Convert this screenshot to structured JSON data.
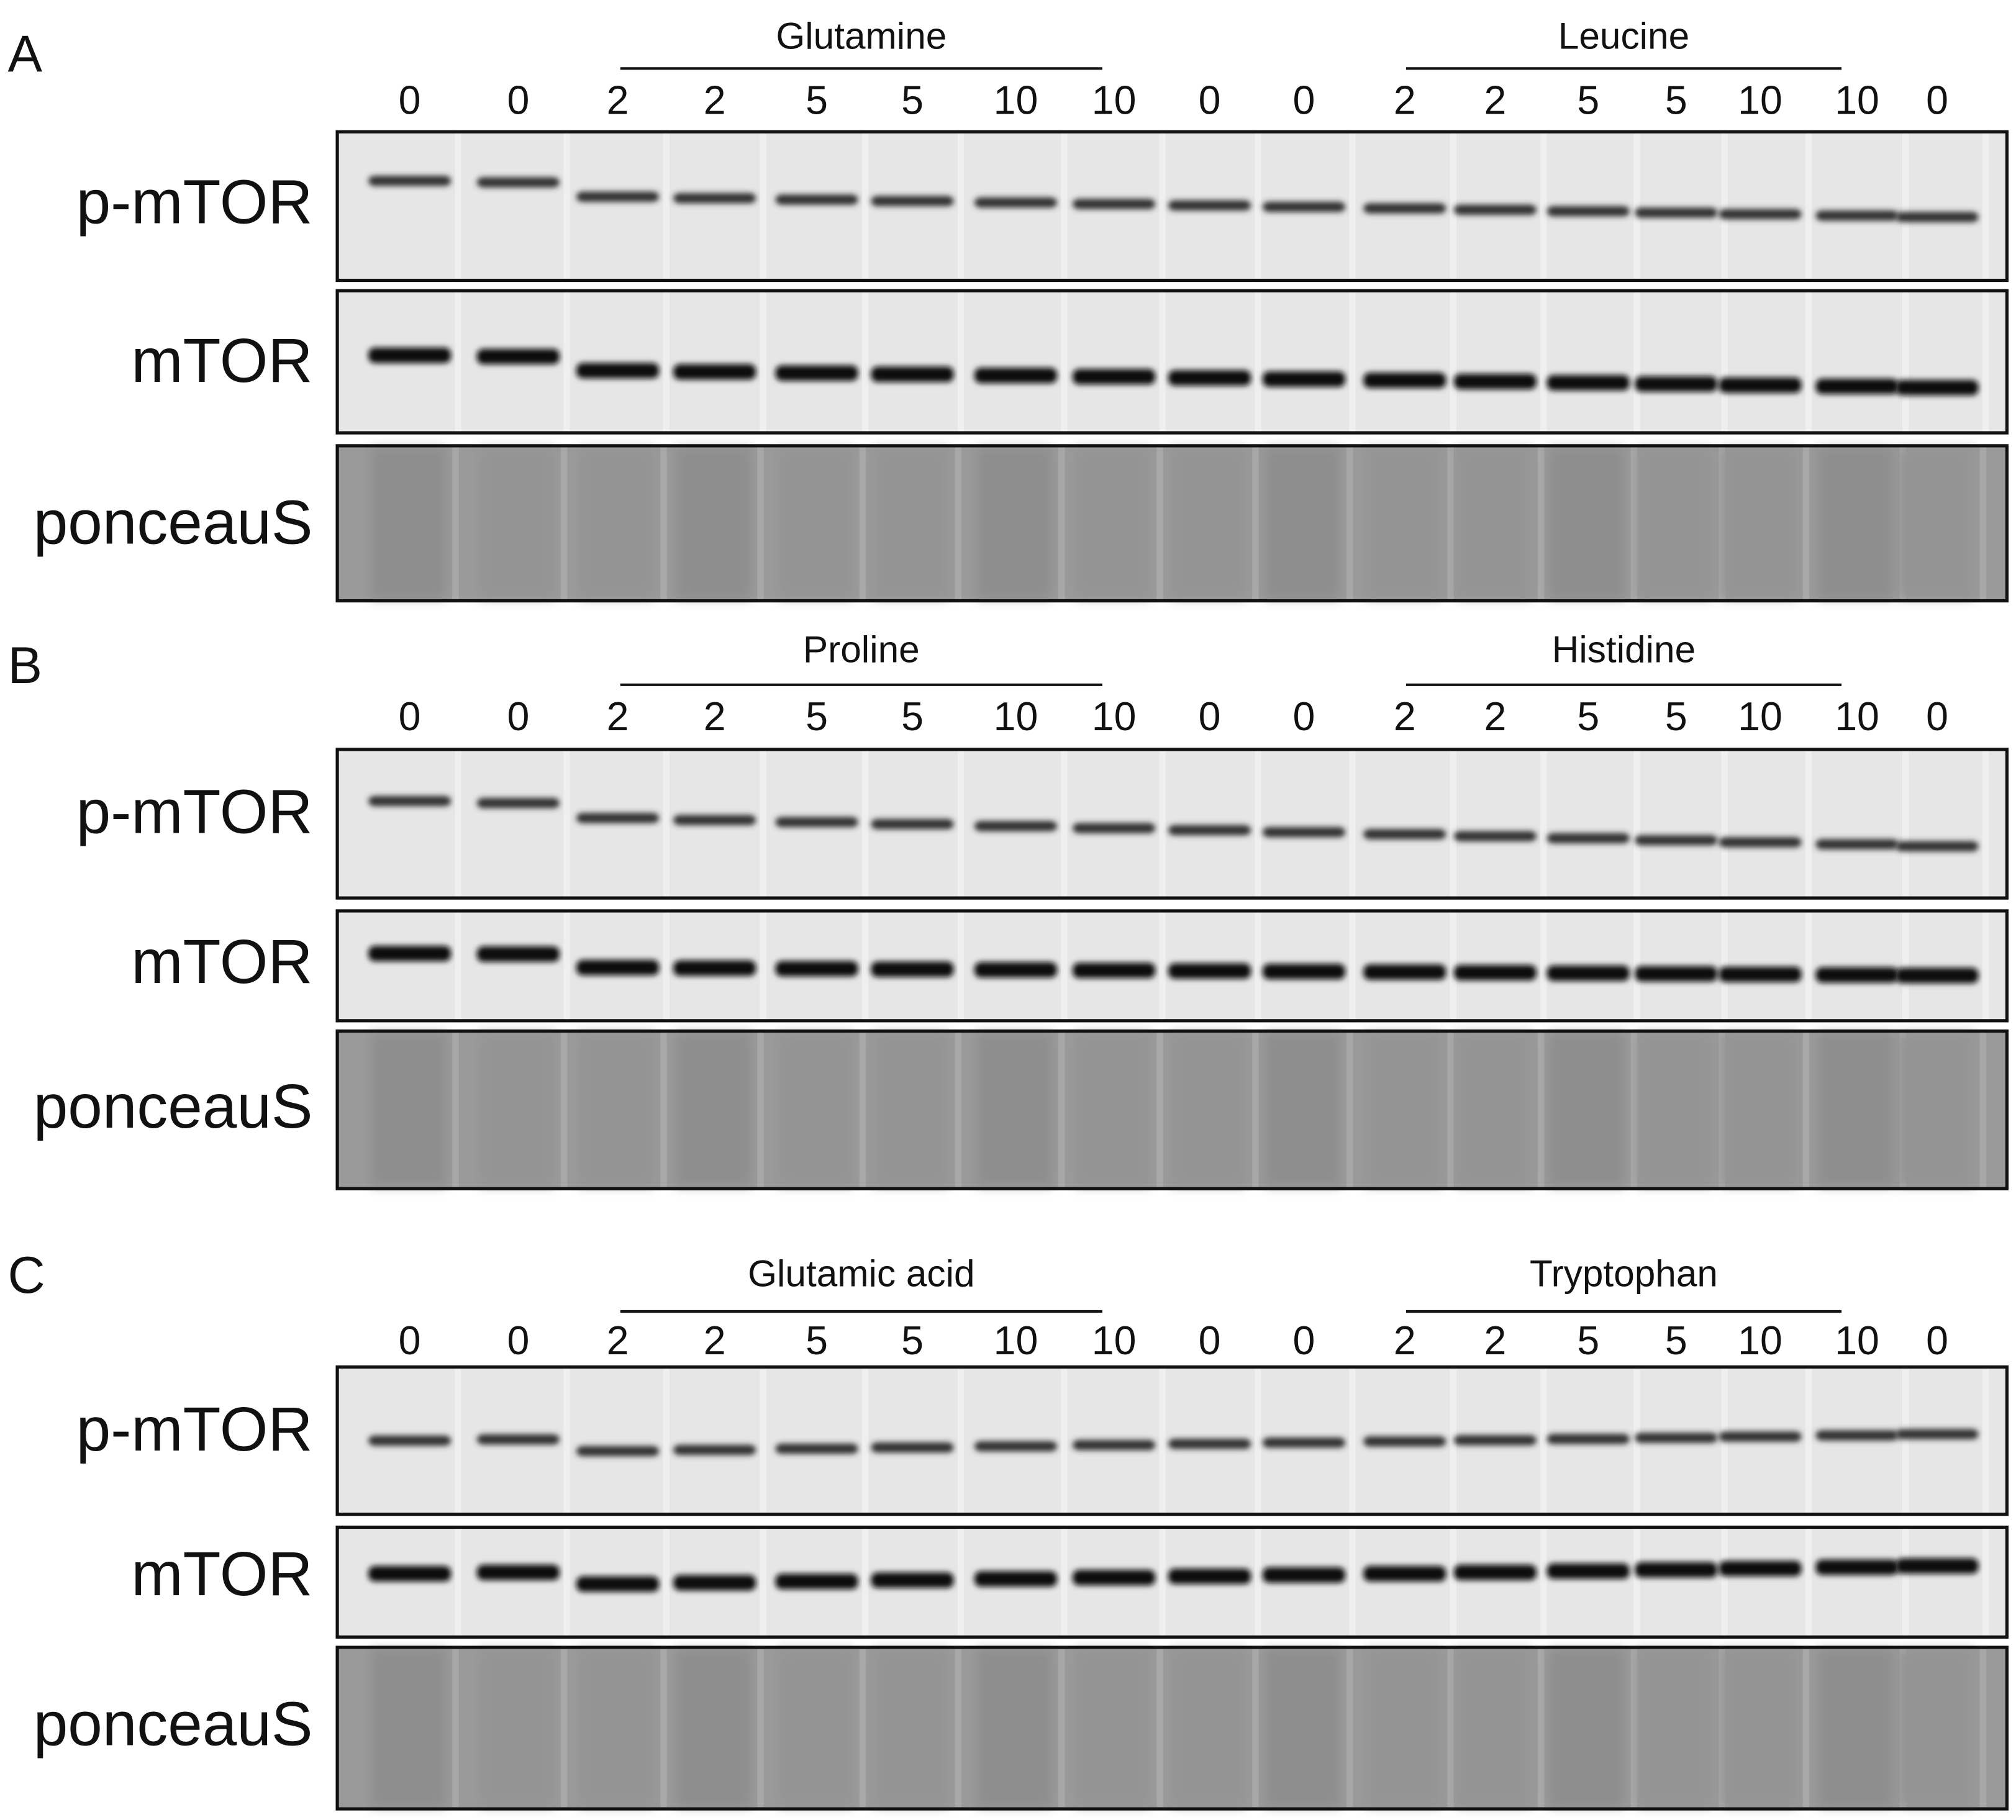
{
  "panels": [
    {
      "letter": "A",
      "groups": [
        "Glutamine",
        "Leucine"
      ],
      "lanes": [
        "0",
        "0",
        "2",
        "2",
        "5",
        "5",
        "10",
        "10",
        "0",
        "0",
        "2",
        "2",
        "5",
        "5",
        "10",
        "10",
        "0"
      ],
      "rows": [
        "p-mTOR",
        "mTOR",
        "ponceauS"
      ]
    },
    {
      "letter": "B",
      "groups": [
        "Proline",
        "Histidine"
      ],
      "lanes": [
        "0",
        "0",
        "2",
        "2",
        "5",
        "5",
        "10",
        "10",
        "0",
        "0",
        "2",
        "2",
        "5",
        "5",
        "10",
        "10",
        "0"
      ],
      "rows": [
        "p-mTOR",
        "mTOR",
        "ponceauS"
      ]
    },
    {
      "letter": "C",
      "groups": [
        "Glutamic acid",
        "Tryptophan"
      ],
      "lanes": [
        "0",
        "0",
        "2",
        "2",
        "5",
        "5",
        "10",
        "10",
        "0",
        "0",
        "2",
        "2",
        "5",
        "5",
        "10",
        "10",
        "0"
      ],
      "rows": [
        "p-mTOR",
        "mTOR",
        "ponceauS"
      ]
    }
  ]
}
